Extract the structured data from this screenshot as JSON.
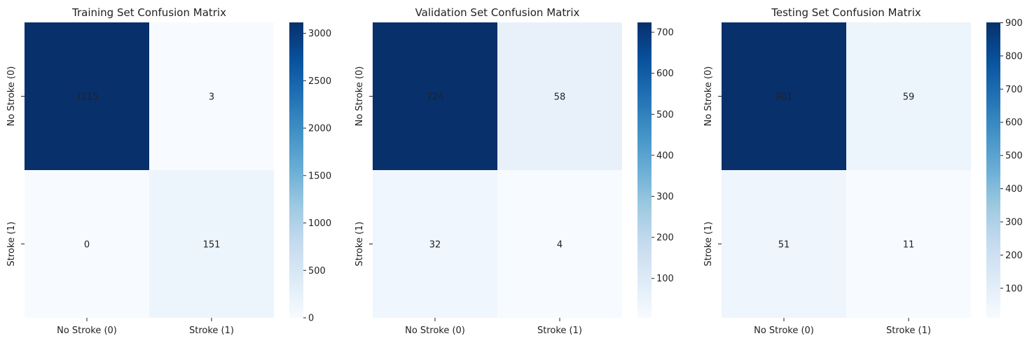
{
  "chart_data": [
    {
      "type": "heatmap",
      "title": "Training Set Confusion Matrix",
      "x_categories": [
        "No Stroke (0)",
        "Stroke (1)"
      ],
      "y_categories": [
        "No Stroke (0)",
        "Stroke (1)"
      ],
      "values": [
        [
          3115,
          3
        ],
        [
          0,
          151
        ]
      ],
      "colorbar": {
        "min": 0,
        "max": 3115,
        "ticks": [
          0,
          500,
          1000,
          1500,
          2000,
          2500,
          3000
        ]
      },
      "colormap": "Blues"
    },
    {
      "type": "heatmap",
      "title": "Validation Set Confusion Matrix",
      "x_categories": [
        "No Stroke (0)",
        "Stroke (1)"
      ],
      "y_categories": [
        "No Stroke (0)",
        "Stroke (1)"
      ],
      "values": [
        [
          724,
          58
        ],
        [
          32,
          4
        ]
      ],
      "colorbar": {
        "min": 4,
        "max": 724,
        "ticks": [
          100,
          200,
          300,
          400,
          500,
          600,
          700
        ]
      },
      "colormap": "Blues"
    },
    {
      "type": "heatmap",
      "title": "Testing Set Confusion Matrix",
      "x_categories": [
        "No Stroke (0)",
        "Stroke (1)"
      ],
      "y_categories": [
        "No Stroke (0)",
        "Stroke (1)"
      ],
      "values": [
        [
          901,
          59
        ],
        [
          51,
          11
        ]
      ],
      "colorbar": {
        "min": 11,
        "max": 901,
        "ticks": [
          100,
          200,
          300,
          400,
          500,
          600,
          700,
          800,
          900
        ]
      },
      "colormap": "Blues"
    }
  ],
  "colors": {
    "blues_low": "#f7fbff",
    "blues_high": "#08306b",
    "text_dark": "#222222",
    "text_light": "#ffffff"
  }
}
